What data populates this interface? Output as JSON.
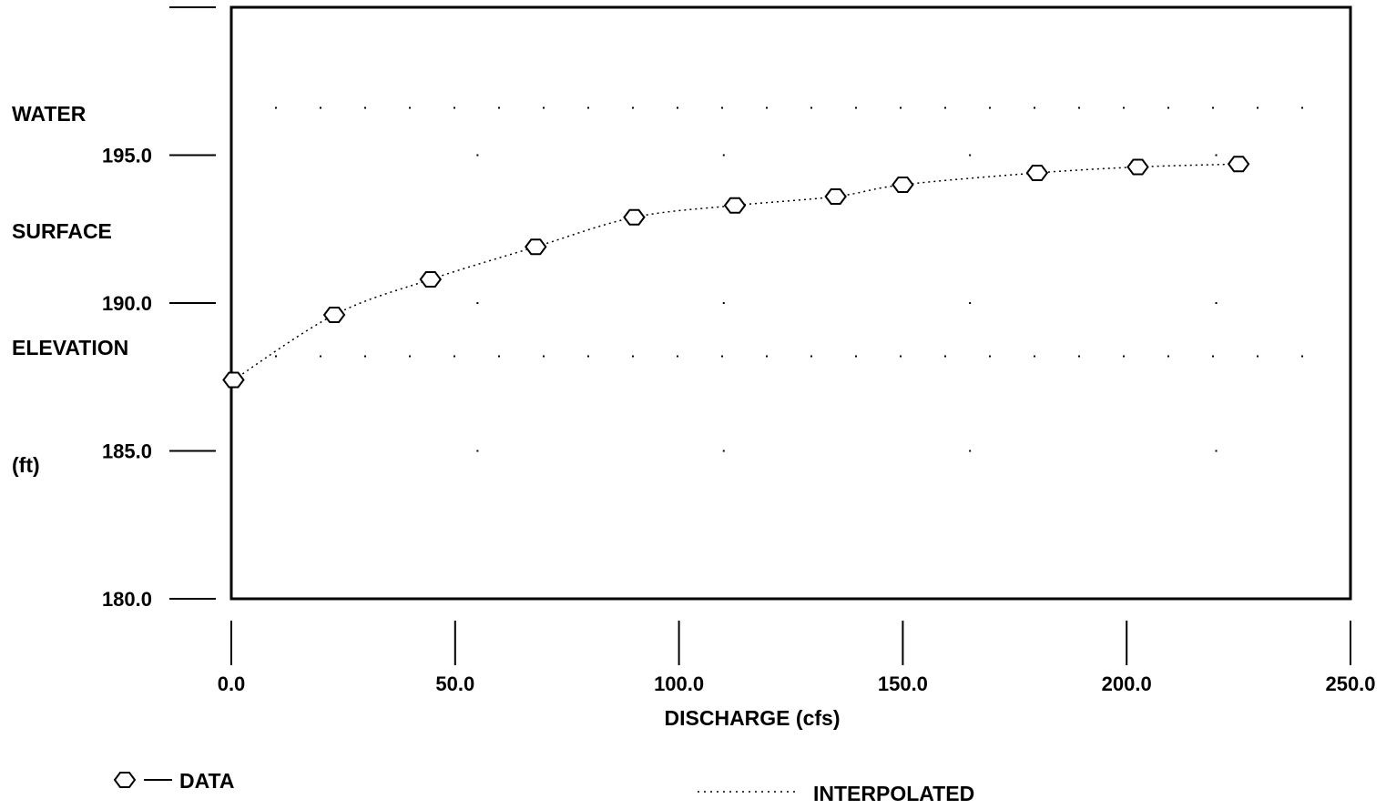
{
  "chart_data": {
    "type": "line",
    "ylabel_lines": [
      "WATER",
      "SURFACE",
      "ELEVATION",
      "(ft)"
    ],
    "xlabel": "DISCHARGE (cfs)",
    "xlim": [
      0,
      250
    ],
    "ylim": [
      180,
      200
    ],
    "x_ticks": [
      0,
      50,
      100,
      150,
      200,
      250
    ],
    "x_tick_labels": [
      "0.0",
      "50.0",
      "100.0",
      "150.0",
      "200.0",
      "250.0"
    ],
    "y_ticks": [
      180,
      185,
      190,
      195
    ],
    "y_tick_labels": [
      "180.0",
      "185.0",
      "190.0",
      "195.0"
    ],
    "grid": "dotted",
    "legend_position": "bottom",
    "series": [
      {
        "name": "DATA",
        "marker": "hexagon",
        "line_style": "dotted",
        "x": [
          0.5,
          23.0,
          44.5,
          68.0,
          90.0,
          112.5,
          135.0,
          150.0,
          180.0,
          202.5,
          225.0
        ],
        "y": [
          187.4,
          189.6,
          190.8,
          191.9,
          192.9,
          193.3,
          193.6,
          194.0,
          194.4,
          194.6,
          194.7
        ]
      }
    ],
    "legend": {
      "data_label": "DATA",
      "interpolated_label": "INTERPOLATED"
    }
  }
}
